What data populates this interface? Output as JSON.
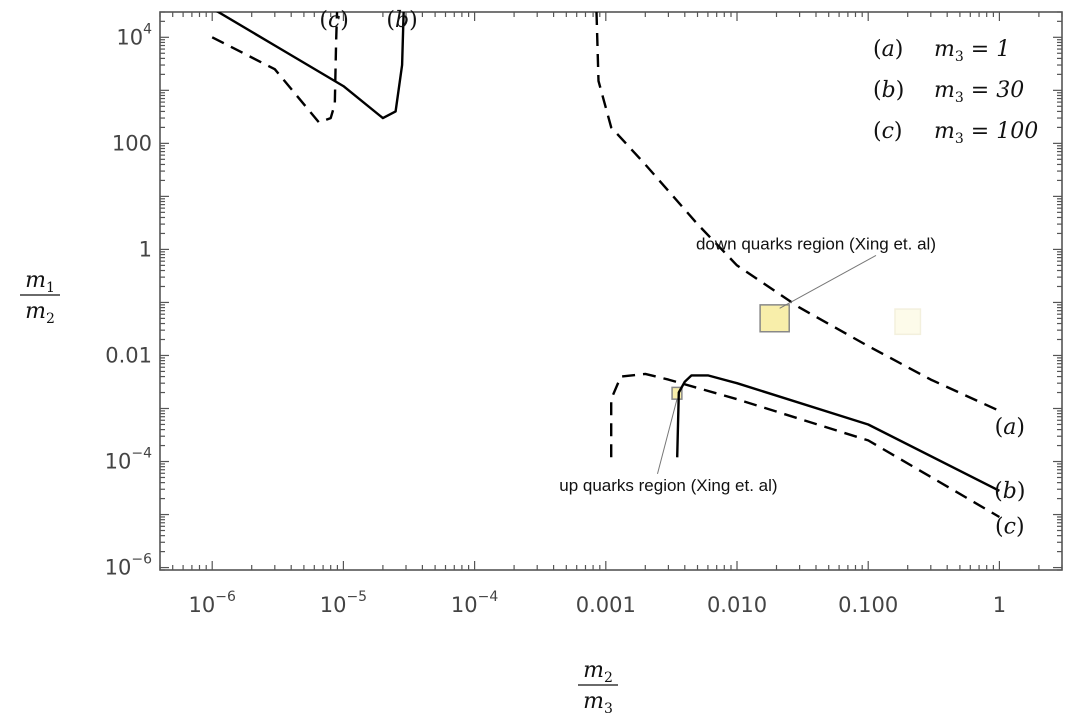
{
  "chart_data": {
    "type": "line",
    "x_scale": "log",
    "y_scale": "log",
    "xlim": [
      4e-07,
      3
    ],
    "ylim": [
      9e-07,
      30000
    ],
    "grid": false,
    "frame": true,
    "xlabel": {
      "numerator": "m",
      "numerator_sub": "2",
      "denominator": "m",
      "denominator_sub": "3"
    },
    "ylabel": {
      "numerator": "m",
      "numerator_sub": "1",
      "denominator": "m",
      "denominator_sub": "2"
    },
    "x_ticks": [
      {
        "value": 1e-06,
        "base": "10",
        "exp": "−6"
      },
      {
        "value": 1e-05,
        "base": "10",
        "exp": "−5"
      },
      {
        "value": 0.0001,
        "base": "10",
        "exp": "−4"
      },
      {
        "value": 0.001,
        "label": "0.001"
      },
      {
        "value": 0.01,
        "label": "0.010"
      },
      {
        "value": 0.1,
        "label": "0.100"
      },
      {
        "value": 1,
        "label": "1"
      }
    ],
    "y_ticks": [
      {
        "value": 1e-06,
        "base": "10",
        "exp": "−6"
      },
      {
        "value": 0.0001,
        "base": "10",
        "exp": "−4"
      },
      {
        "value": 0.01,
        "label": "0.01"
      },
      {
        "value": 1,
        "label": "1"
      },
      {
        "value": 100,
        "label": "100"
      },
      {
        "value": 10000,
        "base": "10",
        "exp": "4"
      }
    ],
    "legend": {
      "placement": "top-right",
      "entries": [
        {
          "tag": "(a)",
          "var": "m",
          "sub": "3",
          "value": "= 1"
        },
        {
          "tag": "(b)",
          "var": "m",
          "sub": "3",
          "value": "= 30"
        },
        {
          "tag": "(c)",
          "var": "m",
          "sub": "3",
          "value": "= 100"
        }
      ]
    },
    "series": [
      {
        "tag": "(a)",
        "style": "dashed",
        "points": [
          [
            0.00085,
            30000
          ],
          [
            0.00088,
            1500
          ],
          [
            0.0011,
            200
          ],
          [
            0.002,
            40
          ],
          [
            0.005,
            3
          ],
          [
            0.01,
            0.5
          ],
          [
            0.03,
            0.08
          ],
          [
            0.1,
            0.015
          ],
          [
            0.3,
            0.0035
          ],
          [
            1,
            0.0009
          ]
        ]
      },
      {
        "tag": "(b)",
        "style": "solid",
        "points": [
          [
            1e-06,
            35000
          ],
          [
            3e-06,
            7000
          ],
          [
            1e-05,
            1200
          ],
          [
            2e-05,
            300
          ],
          [
            2.5e-05,
            400
          ],
          [
            2.8e-05,
            3000
          ],
          [
            2.9e-05,
            60000
          ]
        ]
      },
      {
        "tag": "(b)",
        "style": "solid",
        "points": [
          [
            0.0035,
            0.00012
          ],
          [
            0.0036,
            0.002
          ],
          [
            0.004,
            0.0032
          ],
          [
            0.0045,
            0.0042
          ],
          [
            0.006,
            0.0042
          ],
          [
            0.01,
            0.003
          ],
          [
            0.1,
            0.0005
          ],
          [
            1,
            2.8e-05
          ]
        ]
      },
      {
        "tag": "(c)",
        "style": "dashed",
        "points": [
          [
            1e-06,
            10000
          ],
          [
            3e-06,
            2500
          ],
          [
            6.5e-06,
            250
          ],
          [
            8e-06,
            300
          ],
          [
            8.6e-06,
            550
          ],
          [
            8.8e-06,
            8000
          ],
          [
            9e-06,
            50000
          ]
        ]
      },
      {
        "tag": "(c)",
        "style": "dashed",
        "points": [
          [
            0.0011,
            0.00012
          ],
          [
            0.0011,
            0.0015
          ],
          [
            0.0013,
            0.004
          ],
          [
            0.002,
            0.0045
          ],
          [
            0.003,
            0.0035
          ],
          [
            0.01,
            0.0015
          ],
          [
            0.1,
            0.00025
          ],
          [
            1,
            9e-06
          ]
        ]
      }
    ],
    "curve_labels": [
      {
        "text": "(c)",
        "x": 8.5e-06,
        "y": 21000
      },
      {
        "text": "(b)",
        "x": 2.8e-05,
        "y": 21000
      },
      {
        "text": "(a)",
        "x": 1.2,
        "y": 0.00045
      },
      {
        "text": "(b)",
        "x": 1.2,
        "y": 2.8e-05
      },
      {
        "text": "(c)",
        "x": 1.2,
        "y": 6e-06
      }
    ],
    "regions": [
      {
        "name": "down-quarks-region",
        "label": "down quarks region (Xing et. al)",
        "x": [
          0.015,
          0.025
        ],
        "y": [
          0.028,
          0.09
        ],
        "color": "#f8eeaa",
        "stroke": "#888888",
        "label_x": 0.04,
        "label_y": 1
      },
      {
        "name": "up-quarks-region",
        "label": "up quarks region (Xing et. al)",
        "x": [
          0.0032,
          0.0038
        ],
        "y": [
          0.0015,
          0.0025
        ],
        "color": "#f8eeaa",
        "stroke": "#888888",
        "label_x": 0.003,
        "label_y": 2.8e-05
      },
      {
        "name": "faint-region",
        "label": "",
        "x": [
          0.16,
          0.25
        ],
        "y": [
          0.025,
          0.075
        ],
        "color": "#fdfbea",
        "stroke": "#f3f0dd"
      }
    ]
  }
}
